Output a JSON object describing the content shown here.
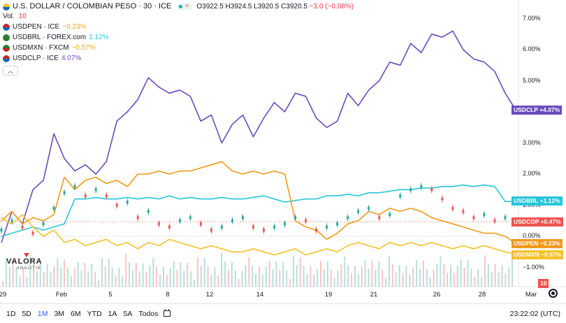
{
  "header": {
    "title": "U.S. DOLLAR / COLOMBIAN PESO · 30 · ICE",
    "ohlc_o": "O3922.5",
    "ohlc_h": "H3924.5",
    "ohlc_l": "L3920.5",
    "ohlc_c": "C3920.5",
    "ohlc_change": "−3.0 (−0.08%)",
    "vol_label": "Vol.",
    "vol_value": "10"
  },
  "compare": [
    {
      "symbol": "USDPEN · ICE",
      "pct": "−0.23%",
      "color": "#f7a21b"
    },
    {
      "symbol": "USDBRL · FOREX.com",
      "pct": "1.12%",
      "color": "#26c6da"
    },
    {
      "symbol": "USDMXN · FXCM",
      "pct": "−0.57%",
      "color": "#f7a21b"
    },
    {
      "symbol": "USDCLP · ICE",
      "pct": "4.07%",
      "color": "#6a4cbe"
    }
  ],
  "price_labels": {
    "clp": "USDCLP  +4.07%",
    "brl": "USDBRL  +1.12%",
    "cop": "USDCOP  +0.47%",
    "pen": "USDPEN  −0.23%",
    "mxn": "USDMXN  −0.57%",
    "vol": "10"
  },
  "colors": {
    "clp": "#6a4cbe",
    "brl": "#26c6da",
    "pen": "#f09a1b",
    "mxn": "#f5c12a",
    "up": "#26a69a",
    "down": "#ef5350"
  },
  "logo": {
    "name": "VALORA",
    "sub": "ANALITIK"
  },
  "ranges": [
    "1D",
    "5D",
    "1M",
    "3M",
    "6M",
    "YTD",
    "1A",
    "5A",
    "Todos"
  ],
  "active_range": "1M",
  "clock": "23:22:02 (UTC)",
  "chart_data": {
    "type": "line",
    "y_axis": {
      "ticks": [
        "7.00%",
        "6.00%",
        "5.00%",
        "4.00%",
        "3.00%",
        "2.00%",
        "1.00%",
        "0.00%",
        "−1.00%"
      ],
      "values": [
        7,
        6,
        5,
        4,
        3,
        2,
        1,
        0,
        -1
      ]
    },
    "x_axis": {
      "ticks": [
        "29",
        "Feb",
        "5",
        "8",
        "12",
        "14",
        "19",
        "21",
        "26",
        "28",
        "Mar"
      ]
    },
    "series": [
      {
        "name": "USDCLP",
        "key": "clp",
        "end_value": 4.07,
        "values": [
          -0.2,
          0.8,
          0.4,
          1.5,
          1.8,
          3.3,
          2.5,
          2.1,
          2.3,
          2.0,
          2.4,
          3.7,
          4.0,
          4.4,
          5.1,
          4.8,
          4.6,
          4.7,
          4.5,
          3.7,
          3.9,
          3.0,
          3.6,
          3.9,
          3.2,
          3.8,
          4.3,
          4.0,
          4.6,
          4.5,
          3.8,
          3.5,
          3.7,
          4.6,
          4.2,
          4.7,
          5.0,
          5.6,
          5.5,
          6.2,
          5.9,
          6.5,
          6.4,
          6.6,
          6.0,
          5.7,
          5.6,
          5.3,
          4.6,
          4.07
        ]
      },
      {
        "name": "USDBRL",
        "key": "brl",
        "end_value": 1.12,
        "values": [
          0.0,
          0.1,
          0.2,
          0.3,
          0.2,
          0.3,
          0.4,
          1.2,
          1.2,
          1.25,
          1.2,
          1.2,
          1.25,
          1.2,
          1.25,
          1.2,
          1.3,
          1.2,
          1.25,
          1.2,
          1.2,
          1.25,
          1.2,
          1.2,
          1.25,
          1.3,
          1.2,
          1.1,
          1.15,
          1.2,
          1.2,
          1.3,
          1.3,
          1.35,
          1.3,
          1.4,
          1.4,
          1.45,
          1.5,
          1.5,
          1.55,
          1.55,
          1.6,
          1.6,
          1.65,
          1.6,
          1.65,
          1.6,
          1.12,
          1.12
        ]
      },
      {
        "name": "USDPEN",
        "key": "pen",
        "end_value": -0.23,
        "values": [
          0.5,
          0.8,
          0.4,
          0.6,
          0.5,
          0.7,
          1.9,
          1.5,
          1.8,
          1.9,
          1.7,
          1.8,
          1.6,
          2.0,
          2.0,
          2.1,
          2.0,
          2.1,
          2.1,
          2.2,
          2.3,
          2.4,
          2.1,
          2.0,
          2.1,
          2.0,
          2.1,
          2.0,
          0.5,
          0.3,
          0.2,
          -0.1,
          0.1,
          0.4,
          0.5,
          0.8,
          0.7,
          0.9,
          0.8,
          0.9,
          0.8,
          0.6,
          0.5,
          0.4,
          0.3,
          0.2,
          0.1,
          0.1,
          0.0,
          -0.23
        ]
      },
      {
        "name": "USDMXN",
        "key": "mxn",
        "end_value": -0.57,
        "values": [
          0.6,
          0.4,
          0.7,
          0.3,
          0.0,
          0.2,
          -0.2,
          -0.1,
          -0.3,
          -0.2,
          -0.1,
          -0.3,
          -0.2,
          -0.4,
          -0.2,
          -0.3,
          -0.1,
          -0.2,
          -0.3,
          -0.4,
          -0.3,
          -0.4,
          -0.5,
          -0.5,
          -0.4,
          -0.5,
          -0.6,
          -0.5,
          -0.4,
          -0.6,
          -0.5,
          -0.4,
          -0.5,
          -0.3,
          -0.2,
          -0.3,
          -0.4,
          -0.2,
          -0.3,
          -0.2,
          -0.3,
          -0.2,
          -0.3,
          -0.4,
          -0.3,
          -0.4,
          -0.3,
          -0.4,
          -0.5,
          -0.57
        ]
      },
      {
        "name": "USDCOP",
        "key": "cop",
        "end_value": 0.47,
        "values": [
          0.2,
          0.5,
          0.3,
          0.1,
          0.4,
          0.9,
          1.4,
          1.6,
          1.3,
          1.5,
          1.3,
          1.0,
          1.1,
          0.6,
          0.8,
          0.4,
          0.3,
          0.5,
          0.6,
          0.4,
          0.2,
          0.3,
          0.5,
          0.6,
          0.3,
          0.2,
          0.3,
          0.4,
          0.6,
          0.5,
          0.2,
          0.3,
          0.4,
          0.6,
          0.8,
          0.9,
          0.6,
          0.7,
          1.3,
          1.5,
          1.6,
          1.5,
          1.2,
          0.9,
          0.8,
          0.6,
          0.7,
          0.5,
          0.6,
          0.47
        ]
      }
    ]
  }
}
